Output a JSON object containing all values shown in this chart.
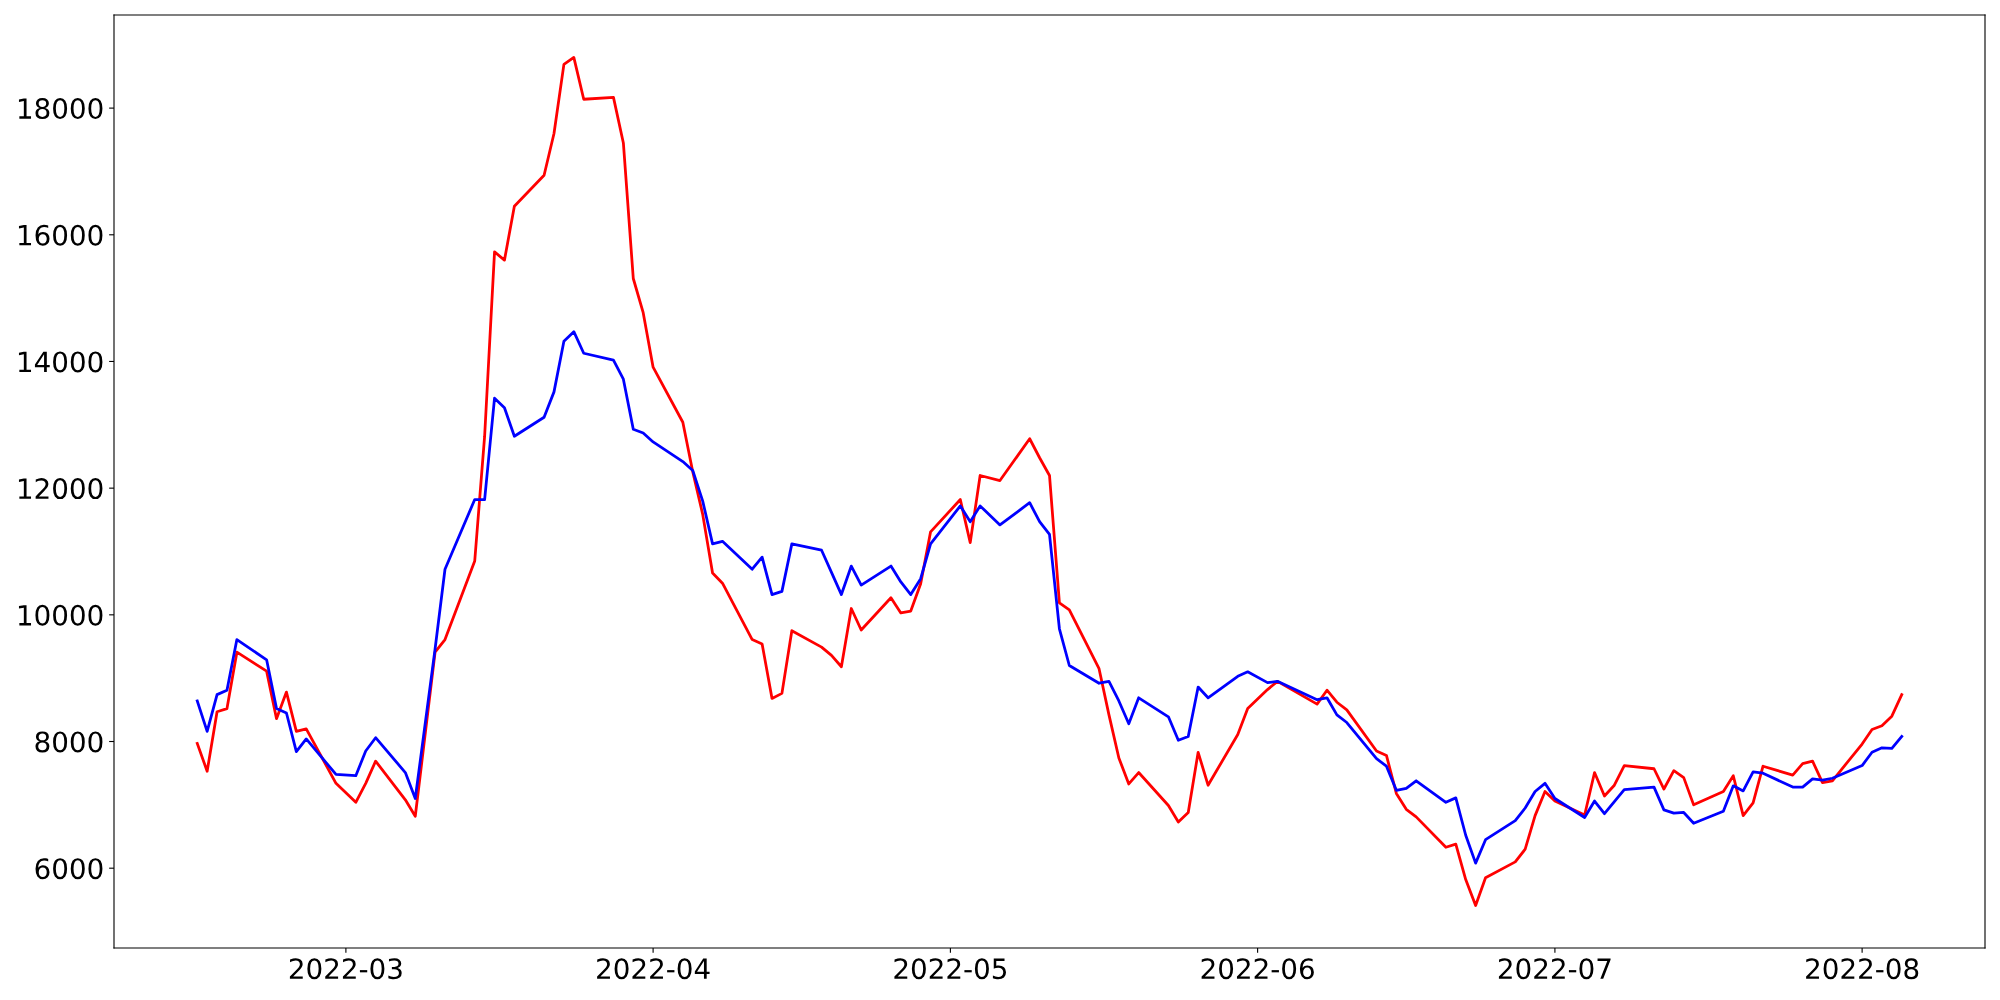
{
  "chart_data": {
    "type": "line",
    "x": [
      "2022-02-14",
      "2022-02-15",
      "2022-02-16",
      "2022-02-17",
      "2022-02-18",
      "2022-02-21",
      "2022-02-22",
      "2022-02-23",
      "2022-02-24",
      "2022-02-25",
      "2022-02-28",
      "2022-03-02",
      "2022-03-03",
      "2022-03-04",
      "2022-03-07",
      "2022-03-08",
      "2022-03-10",
      "2022-03-11",
      "2022-03-14",
      "2022-03-15",
      "2022-03-16",
      "2022-03-17",
      "2022-03-18",
      "2022-03-21",
      "2022-03-22",
      "2022-03-23",
      "2022-03-24",
      "2022-03-25",
      "2022-03-28",
      "2022-03-29",
      "2022-03-30",
      "2022-03-31",
      "2022-04-01",
      "2022-04-04",
      "2022-04-05",
      "2022-04-06",
      "2022-04-07",
      "2022-04-08",
      "2022-04-11",
      "2022-04-12",
      "2022-04-13",
      "2022-04-14",
      "2022-04-15",
      "2022-04-18",
      "2022-04-19",
      "2022-04-20",
      "2022-04-21",
      "2022-04-22",
      "2022-04-25",
      "2022-04-26",
      "2022-04-27",
      "2022-04-28",
      "2022-04-29",
      "2022-05-02",
      "2022-05-03",
      "2022-05-04",
      "2022-05-06",
      "2022-05-09",
      "2022-05-10",
      "2022-05-11",
      "2022-05-12",
      "2022-05-13",
      "2022-05-16",
      "2022-05-17",
      "2022-05-18",
      "2022-05-19",
      "2022-05-20",
      "2022-05-23",
      "2022-05-24",
      "2022-05-25",
      "2022-05-26",
      "2022-05-27",
      "2022-05-30",
      "2022-05-31",
      "2022-06-02",
      "2022-06-03",
      "2022-06-07",
      "2022-06-08",
      "2022-06-09",
      "2022-06-10",
      "2022-06-13",
      "2022-06-14",
      "2022-06-15",
      "2022-06-16",
      "2022-06-17",
      "2022-06-20",
      "2022-06-21",
      "2022-06-22",
      "2022-06-23",
      "2022-06-24",
      "2022-06-27",
      "2022-06-28",
      "2022-06-29",
      "2022-06-30",
      "2022-07-01",
      "2022-07-04",
      "2022-07-05",
      "2022-07-06",
      "2022-07-07",
      "2022-07-08",
      "2022-07-11",
      "2022-07-12",
      "2022-07-13",
      "2022-07-14",
      "2022-07-15",
      "2022-07-18",
      "2022-07-19",
      "2022-07-20",
      "2022-07-21",
      "2022-07-22",
      "2022-07-25",
      "2022-07-26",
      "2022-07-27",
      "2022-07-28",
      "2022-07-29",
      "2022-08-01",
      "2022-08-02",
      "2022-08-03",
      "2022-08-04",
      "2022-08-05"
    ],
    "series": [
      {
        "color": "#ff0000",
        "values": [
          7970,
          7530,
          8470,
          8520,
          9410,
          9110,
          8360,
          8780,
          8160,
          8200,
          7340,
          7040,
          7340,
          7690,
          7080,
          6820,
          9410,
          9610,
          10850,
          12820,
          15730,
          15600,
          16450,
          16940,
          17600,
          18690,
          18800,
          18140,
          18170,
          17450,
          15310,
          14770,
          13910,
          13040,
          12260,
          11590,
          10660,
          10500,
          9610,
          9540,
          8680,
          8760,
          9750,
          9490,
          9360,
          9180,
          10100,
          9760,
          10270,
          10030,
          10060,
          10490,
          11310,
          11820,
          11140,
          12200,
          12120,
          12780,
          12480,
          12200,
          10190,
          10080,
          9150,
          8420,
          7740,
          7330,
          7510,
          6990,
          6730,
          6880,
          7830,
          7310,
          8110,
          8520,
          8820,
          8950,
          8590,
          8810,
          8620,
          8500,
          7850,
          7780,
          7180,
          6930,
          6810,
          6330,
          6380,
          5820,
          5410,
          5850,
          6100,
          6300,
          6830,
          7210,
          7060,
          6840,
          7510,
          7140,
          7310,
          7620,
          7570,
          7250,
          7540,
          7430,
          7000,
          7210,
          7460,
          6830,
          7030,
          7610,
          7470,
          7650,
          7690,
          7350,
          7380,
          7960,
          8190,
          8250,
          8400,
          8740
        ]
      },
      {
        "color": "#0000ff",
        "values": [
          8640,
          8160,
          8740,
          8810,
          9610,
          9290,
          8520,
          8450,
          7840,
          8040,
          7480,
          7460,
          7850,
          8060,
          7510,
          7100,
          9460,
          10720,
          11820,
          11820,
          13420,
          13270,
          12820,
          13120,
          13520,
          14320,
          14470,
          14130,
          14020,
          13720,
          12930,
          12870,
          12730,
          12420,
          12280,
          11800,
          11120,
          11160,
          10720,
          10910,
          10320,
          10370,
          11120,
          11020,
          10670,
          10320,
          10770,
          10470,
          10770,
          10520,
          10320,
          10570,
          11120,
          11720,
          11470,
          11720,
          11420,
          11770,
          11470,
          11270,
          9780,
          9200,
          8920,
          8950,
          8640,
          8280,
          8690,
          8390,
          8020,
          8080,
          8860,
          8690,
          9030,
          9100,
          8930,
          8950,
          8660,
          8690,
          8420,
          8300,
          7730,
          7610,
          7230,
          7260,
          7380,
          7040,
          7110,
          6520,
          6080,
          6450,
          6750,
          6950,
          7210,
          7340,
          7100,
          6800,
          7060,
          6860,
          7050,
          7240,
          7280,
          6920,
          6870,
          6880,
          6710,
          6900,
          7300,
          7220,
          7520,
          7500,
          7280,
          7280,
          7410,
          7390,
          7420,
          7620,
          7830,
          7900,
          7890,
          8080
        ]
      }
    ],
    "xlim": [
      "2022-02-05T14:24",
      "2022-08-13T09:36"
    ],
    "xticks": [
      {
        "value": "2022-03-01",
        "label": "2022-03"
      },
      {
        "value": "2022-04-01",
        "label": "2022-04"
      },
      {
        "value": "2022-05-01",
        "label": "2022-05"
      },
      {
        "value": "2022-06-01",
        "label": "2022-06"
      },
      {
        "value": "2022-07-01",
        "label": "2022-07"
      },
      {
        "value": "2022-08-01",
        "label": "2022-08"
      }
    ],
    "ylim": [
      4740,
      19470
    ],
    "yticks": [
      6000,
      8000,
      10000,
      12000,
      14000,
      16000,
      18000
    ],
    "grid": false,
    "marker": "none",
    "line_style": "solid"
  }
}
